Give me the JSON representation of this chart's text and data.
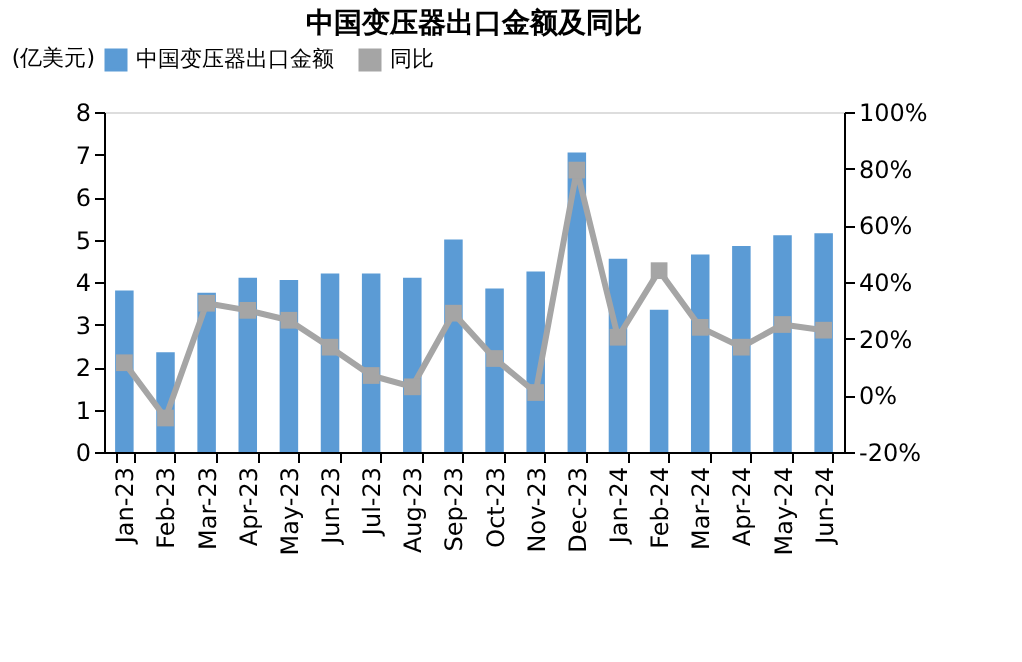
{
  "chart_data": {
    "type": "bar",
    "title": "中国变压器出口金额及同比",
    "ylabel": "(亿美元)",
    "categories": [
      "Jan-23",
      "Feb-23",
      "Mar-23",
      "Apr-23",
      "May-23",
      "Jun-23",
      "Jul-23",
      "Aug-23",
      "Sep-23",
      "Oct-23",
      "Nov-23",
      "Dec-23",
      "Jan-24",
      "Feb-24",
      "Mar-24",
      "Apr-24",
      "May-24",
      "Jun-24"
    ],
    "series": [
      {
        "name": "中国变压器出口金额",
        "color": "#5b9bd5",
        "values": [
          3.8,
          2.35,
          3.75,
          4.1,
          4.05,
          4.2,
          4.2,
          4.1,
          5.0,
          3.85,
          4.25,
          7.05,
          4.55,
          3.35,
          4.65,
          4.85,
          5.1,
          5.15
        ]
      },
      {
        "name": "同比",
        "color": "#a5a5a5",
        "type": "line",
        "axis": "y2",
        "marker": "square",
        "values": [
          11.5,
          -8,
          32.5,
          30,
          26.5,
          17,
          7,
          3,
          29,
          13,
          1,
          79.5,
          20.5,
          44,
          24,
          17,
          25,
          23
        ]
      }
    ],
    "ylim": [
      0,
      8
    ],
    "yticks": [
      0,
      1,
      2,
      3,
      4,
      5,
      6,
      7,
      8
    ],
    "y2lim": [
      -20,
      100
    ],
    "y2ticks": [
      {
        "value": -20,
        "label": "-20%"
      },
      {
        "value": 0,
        "label": "0%"
      },
      {
        "value": 20,
        "label": "20%"
      },
      {
        "value": 40,
        "label": "40%"
      },
      {
        "value": 60,
        "label": "60%"
      },
      {
        "value": 80,
        "label": "80%"
      },
      {
        "value": 100,
        "label": "100%"
      }
    ],
    "grid": false,
    "legend": "top"
  }
}
